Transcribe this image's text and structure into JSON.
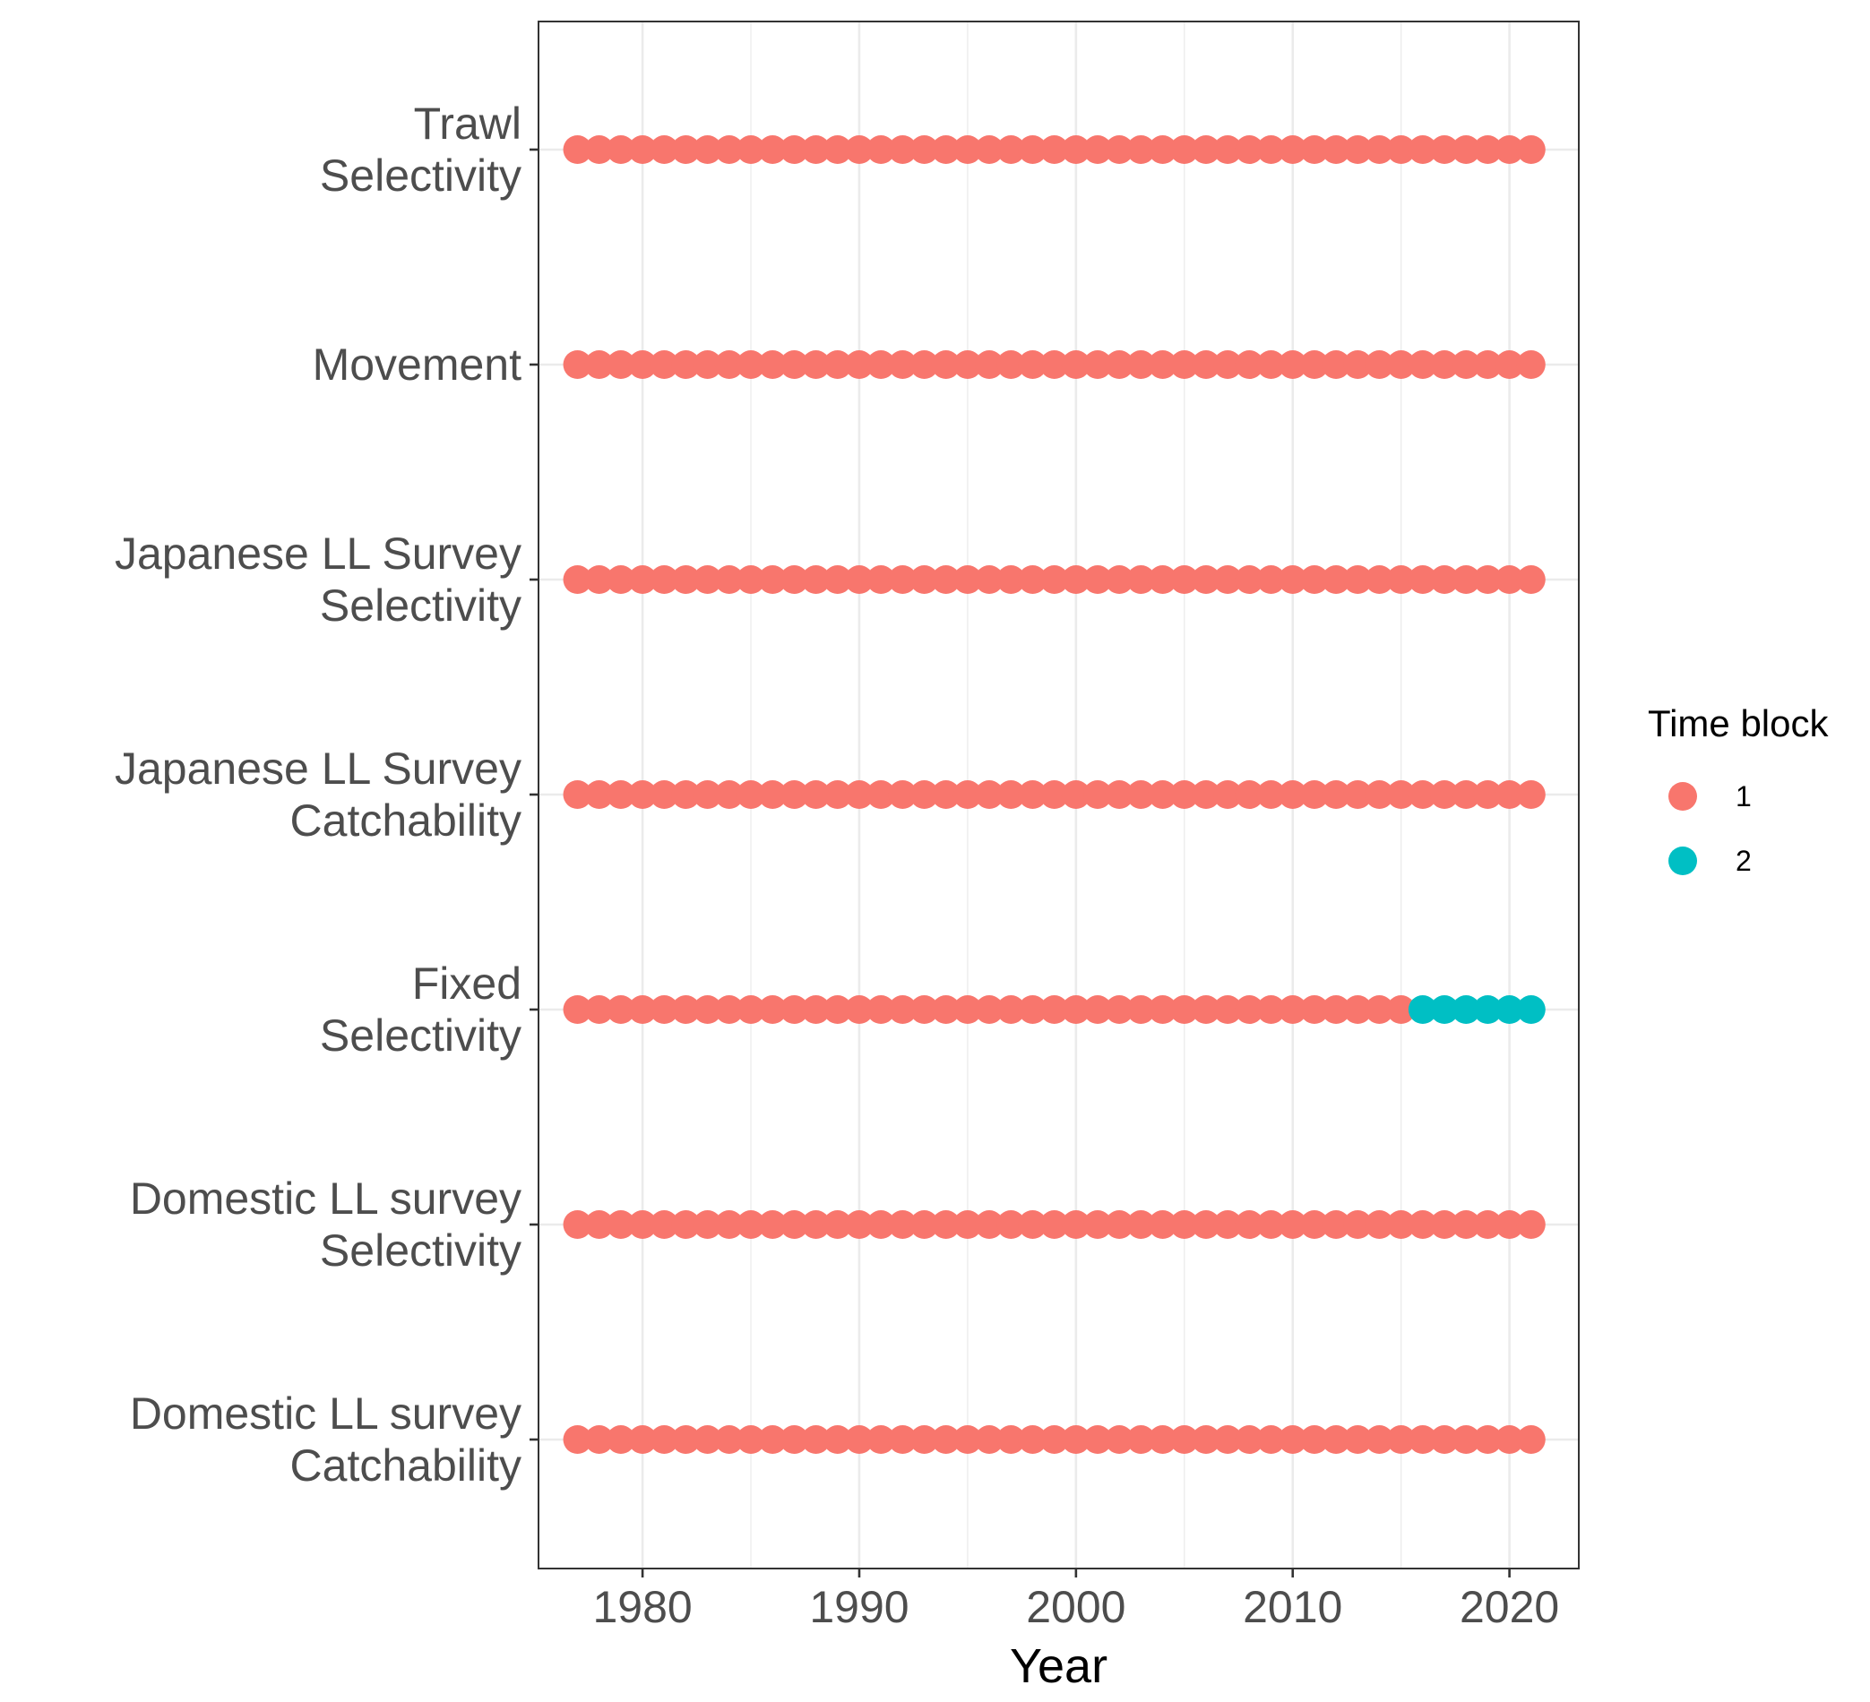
{
  "chart_data": {
    "type": "scatter",
    "title": "",
    "xlabel": "Year",
    "ylabel": "",
    "x_ticks": [
      1980,
      1990,
      2000,
      2010,
      2020
    ],
    "xlim": [
      1975.2,
      2023.2
    ],
    "years": [
      1977,
      1978,
      1979,
      1980,
      1981,
      1982,
      1983,
      1984,
      1985,
      1986,
      1987,
      1988,
      1989,
      1990,
      1991,
      1992,
      1993,
      1994,
      1995,
      1996,
      1997,
      1998,
      1999,
      2000,
      2001,
      2002,
      2003,
      2004,
      2005,
      2006,
      2007,
      2008,
      2009,
      2010,
      2011,
      2012,
      2013,
      2014,
      2015,
      2016,
      2017,
      2018,
      2019,
      2020,
      2021
    ],
    "categories": [
      {
        "lines": [
          "Trawl",
          "Selectivity"
        ],
        "block2_start_year": null
      },
      {
        "lines": [
          "Movement"
        ],
        "block2_start_year": null
      },
      {
        "lines": [
          "Japanese LL Survey",
          "Selectivity"
        ],
        "block2_start_year": null
      },
      {
        "lines": [
          "Japanese LL Survey",
          "Catchability"
        ],
        "block2_start_year": null
      },
      {
        "lines": [
          "Fixed",
          "Selectivity"
        ],
        "block2_start_year": 2016
      },
      {
        "lines": [
          "Domestic LL survey",
          "Selectivity"
        ],
        "block2_start_year": null
      },
      {
        "lines": [
          "Domestic LL survey",
          "Catchability"
        ],
        "block2_start_year": null
      }
    ],
    "grid": true,
    "legend": {
      "title": "Time block",
      "position": "right",
      "entries": [
        {
          "label": "1",
          "color": "#F8766D"
        },
        {
          "label": "2",
          "color": "#00BFC4"
        }
      ]
    }
  }
}
